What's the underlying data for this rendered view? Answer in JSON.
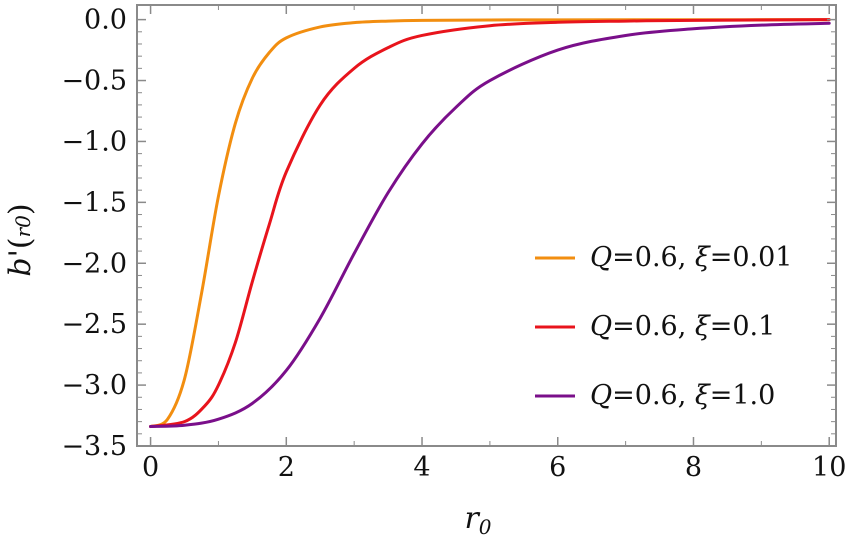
{
  "chart_data": {
    "type": "line",
    "title": "",
    "xlabel": {
      "main": "r",
      "sub": "0"
    },
    "ylabel": {
      "main": "b'",
      "sub": "r0",
      "open": "(",
      "close": ")"
    },
    "xlim": [
      -0.2,
      10.1
    ],
    "ylim": [
      -3.5,
      0.12
    ],
    "xticks": [
      0,
      2,
      4,
      6,
      8,
      10
    ],
    "xtick_labels": [
      "0",
      "2",
      "4",
      "6",
      "8",
      "10"
    ],
    "yticks": [
      0.0,
      -0.5,
      -1.0,
      -1.5,
      -2.0,
      -2.5,
      -3.0,
      -3.5
    ],
    "ytick_labels": [
      "0.0",
      "−0.5",
      "−1.0",
      "−1.5",
      "−2.0",
      "−2.5",
      "−3.0",
      "−3.5"
    ],
    "grid": false,
    "legend_position": "bottom-right",
    "series": [
      {
        "name": "Q=0.6, ξ=0.01",
        "legend": {
          "q": "Q",
          "qval": "=0.6, ",
          "xi": "ξ",
          "xival": "=0.01"
        },
        "color": "#f28e10",
        "x": [
          0,
          0.25,
          0.5,
          0.75,
          1.0,
          1.25,
          1.5,
          1.75,
          2.0,
          2.5,
          3.0,
          3.5,
          4.0,
          5.0,
          6.0,
          8.0,
          10.0
        ],
        "y": [
          -3.34,
          -3.28,
          -2.95,
          -2.25,
          -1.45,
          -0.85,
          -0.48,
          -0.27,
          -0.15,
          -0.06,
          -0.025,
          -0.012,
          -0.006,
          -0.003,
          -0.002,
          -0.001,
          0.0
        ]
      },
      {
        "name": "Q=0.6, ξ=0.1",
        "legend": {
          "q": "Q",
          "qval": "=0.6, ",
          "xi": "ξ",
          "xival": "=0.1"
        },
        "color": "#e8141c",
        "x": [
          0,
          0.5,
          0.8,
          1.0,
          1.25,
          1.5,
          1.75,
          2.0,
          2.5,
          3.0,
          3.5,
          4.0,
          5.0,
          6.0,
          7.0,
          8.0,
          10.0
        ],
        "y": [
          -3.34,
          -3.3,
          -3.17,
          -3.0,
          -2.65,
          -2.15,
          -1.68,
          -1.25,
          -0.7,
          -0.4,
          -0.23,
          -0.13,
          -0.05,
          -0.022,
          -0.012,
          -0.006,
          0.0
        ]
      },
      {
        "name": "Q=0.6, ξ=1.0",
        "legend": {
          "q": "Q",
          "qval": "=0.6, ",
          "xi": "ξ",
          "xival": "=1.0"
        },
        "color": "#7a0f8a",
        "x": [
          0,
          0.5,
          1.0,
          1.5,
          2.0,
          2.5,
          3.0,
          3.5,
          4.0,
          4.5,
          5.0,
          6.0,
          7.0,
          8.0,
          9.0,
          10.0
        ],
        "y": [
          -3.34,
          -3.33,
          -3.28,
          -3.15,
          -2.88,
          -2.45,
          -1.92,
          -1.42,
          -1.02,
          -0.72,
          -0.5,
          -0.25,
          -0.13,
          -0.075,
          -0.045,
          -0.03
        ]
      }
    ]
  }
}
